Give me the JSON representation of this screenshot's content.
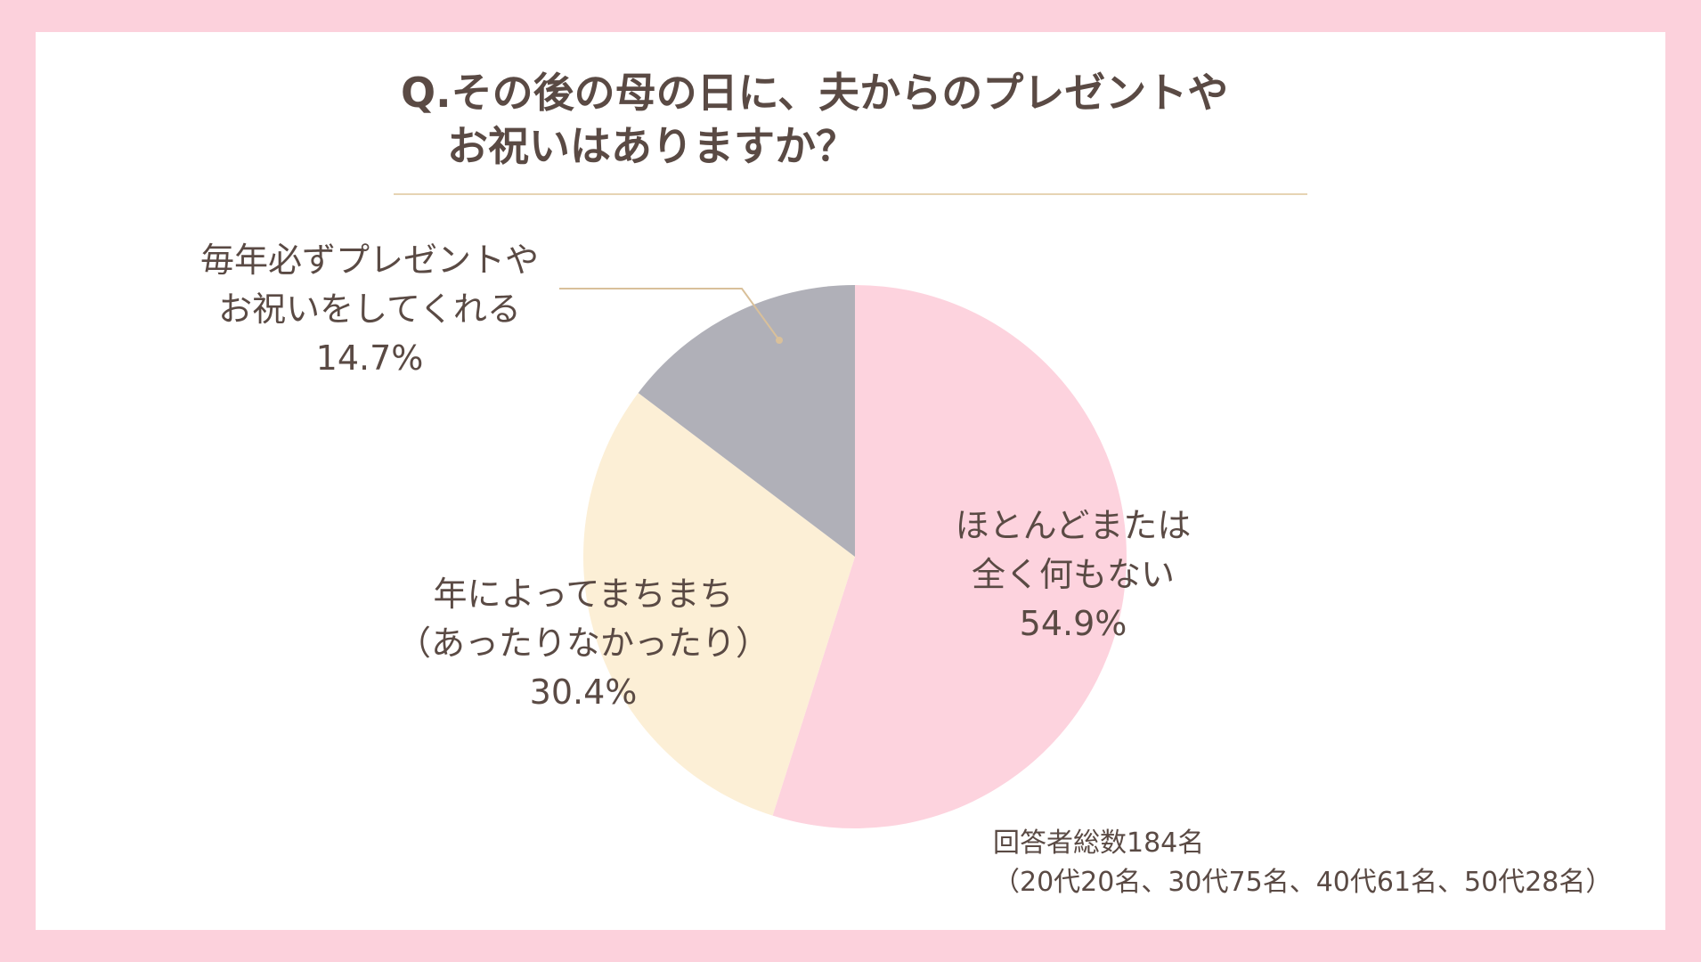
{
  "colors": {
    "background": "#fcd1dc",
    "card": "#ffffff",
    "text": "#5a4a44",
    "rule": "#e6d4b3",
    "leader_line": "#d9c09a"
  },
  "chart_data": {
    "type": "pie",
    "title_lines": [
      "Q.その後の母の日に、夫からのプレゼントや",
      "お祝いはありますか？"
    ],
    "start_angle_deg": 0,
    "direction": "clockwise",
    "slices": [
      {
        "label_lines": [
          "ほとんどまたは",
          "全く何もない"
        ],
        "value": 54.9,
        "value_label": "54.9%",
        "color": "#fdd3de"
      },
      {
        "label_lines": [
          "年によってまちまち",
          "（あったりなかったり）"
        ],
        "value": 30.4,
        "value_label": "30.4%",
        "color": "#fcefd6"
      },
      {
        "label_lines": [
          "毎年必ずプレゼントや",
          "お祝いをしてくれる"
        ],
        "value": 14.7,
        "value_label": "14.7%",
        "color": "#b0b0b8"
      }
    ],
    "note_lines": [
      "回答者総数184名",
      "（20代20名、30代75名、40代61名、50代28名）"
    ]
  }
}
